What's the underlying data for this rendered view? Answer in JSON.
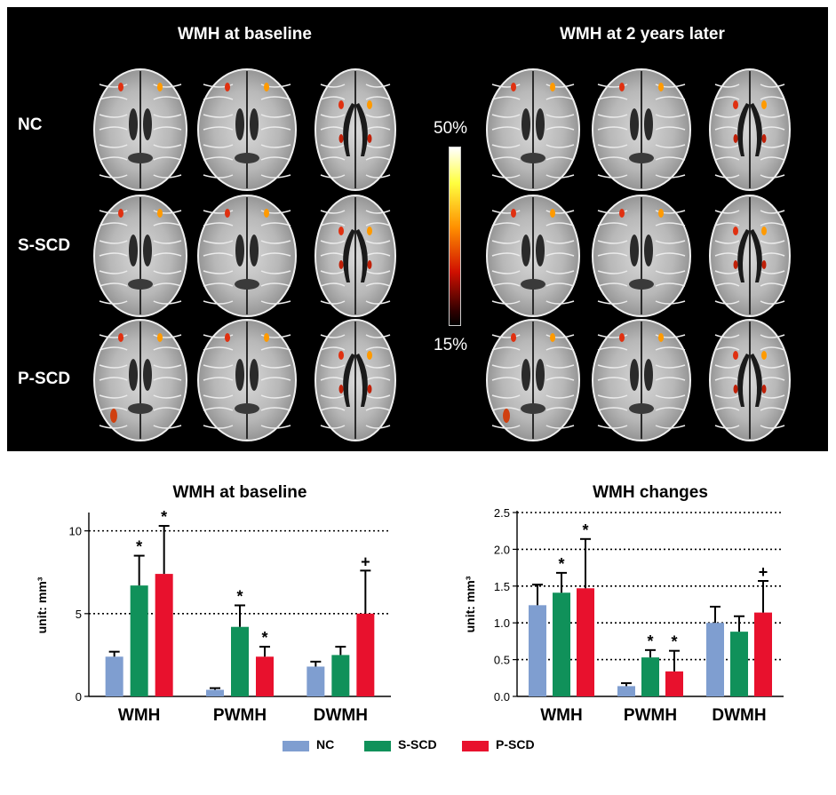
{
  "figure": {
    "left_title": "WMH at baseline",
    "right_title": "WMH at 2 years later",
    "row_labels": [
      "NC",
      "S-SCD",
      "P-SCD"
    ],
    "colorbar": {
      "max_label": "50%",
      "min_label": "15%"
    }
  },
  "colors": {
    "NC": "#7f9ed0",
    "S-SCD": "#10915a",
    "P-SCD": "#e8112d",
    "panel_background": "#000000"
  },
  "chart_data": [
    {
      "type": "bar",
      "title": "WMH at baseline",
      "ylabel": "unit: mm³",
      "ylim": [
        0,
        11
      ],
      "yticks": [
        0,
        5,
        10
      ],
      "ytick_labels": [
        "0",
        "5",
        "10"
      ],
      "grid": "dotted at 5 and 10",
      "categories": [
        "WMH",
        "PWMH",
        "DWMH"
      ],
      "series": [
        {
          "name": "NC",
          "values": [
            2.4,
            0.4,
            1.8
          ],
          "errors": [
            0.3,
            0.1,
            0.3
          ]
        },
        {
          "name": "S-SCD",
          "values": [
            6.7,
            4.2,
            2.5
          ],
          "errors": [
            1.8,
            1.3,
            0.5
          ]
        },
        {
          "name": "P-SCD",
          "values": [
            7.4,
            2.4,
            5.0
          ],
          "errors": [
            2.9,
            0.6,
            2.6
          ]
        }
      ],
      "annotations": [
        {
          "series": "S-SCD",
          "category": "WMH",
          "text": "*"
        },
        {
          "series": "P-SCD",
          "category": "WMH",
          "text": "*"
        },
        {
          "series": "S-SCD",
          "category": "PWMH",
          "text": "*"
        },
        {
          "series": "P-SCD",
          "category": "PWMH",
          "text": "*"
        },
        {
          "series": "P-SCD",
          "category": "DWMH",
          "text": "+"
        }
      ]
    },
    {
      "type": "bar",
      "title": "WMH changes",
      "ylabel": "unit: mm³",
      "ylim": [
        0,
        2.5
      ],
      "yticks": [
        0,
        0.5,
        1.0,
        1.5,
        2.0,
        2.5
      ],
      "ytick_labels": [
        "0.0",
        "0.5",
        "1.0",
        "1.5",
        "2.0",
        "2.5"
      ],
      "grid": "dotted at every tick",
      "categories": [
        "WMH",
        "PWMH",
        "DWMH"
      ],
      "series": [
        {
          "name": "NC",
          "values": [
            1.24,
            0.14,
            1.0
          ],
          "errors": [
            0.28,
            0.04,
            0.22
          ]
        },
        {
          "name": "S-SCD",
          "values": [
            1.41,
            0.53,
            0.88
          ],
          "errors": [
            0.27,
            0.1,
            0.21
          ]
        },
        {
          "name": "P-SCD",
          "values": [
            1.47,
            0.34,
            1.14
          ],
          "errors": [
            0.67,
            0.28,
            0.43
          ]
        }
      ],
      "annotations": [
        {
          "series": "S-SCD",
          "category": "WMH",
          "text": "*"
        },
        {
          "series": "P-SCD",
          "category": "WMH",
          "text": "*"
        },
        {
          "series": "S-SCD",
          "category": "PWMH",
          "text": "*"
        },
        {
          "series": "P-SCD",
          "category": "PWMH",
          "text": "*"
        },
        {
          "series": "P-SCD",
          "category": "DWMH",
          "text": "+"
        }
      ]
    }
  ],
  "legend": {
    "placement": "bottom-center",
    "items": [
      "NC",
      "S-SCD",
      "P-SCD"
    ]
  }
}
